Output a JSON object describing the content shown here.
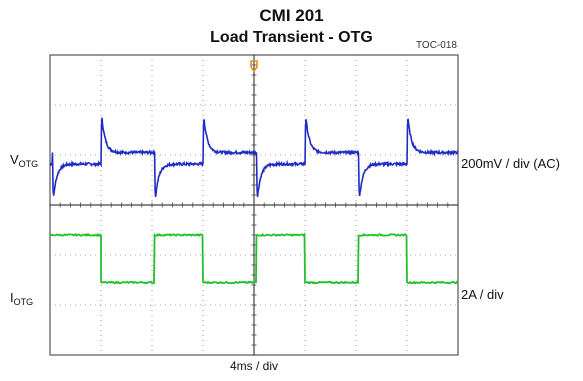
{
  "header": {
    "title": "CMI 201",
    "subtitle": "Load Transient - OTG",
    "figure_id": "TOC-018"
  },
  "channels": {
    "voltage": {
      "label_main": "V",
      "label_sub": "OTG",
      "scale": "200mV / div (AC)"
    },
    "current": {
      "label_main": "I",
      "label_sub": "OTG",
      "scale": "2A / div"
    }
  },
  "timebase": "4ms / div",
  "chart_data": {
    "type": "line",
    "title": "Load Transient - OTG",
    "xlabel": "4ms / div",
    "grid": true,
    "x_divisions": 8,
    "y_divisions": 6,
    "colors": {
      "voltage": "#1f2bc4",
      "current": "#22c12a",
      "trigger": "#e08a00",
      "grid": "#888888",
      "frame": "#555555"
    },
    "x": [
      0,
      0.5,
      1.0,
      1.5,
      2.0,
      2.5,
      3.0,
      3.5,
      4.0,
      4.5,
      5.0,
      5.5,
      6.0,
      6.5,
      7.0,
      7.5,
      8.0
    ],
    "series": [
      {
        "name": "V_OTG",
        "unit": "div",
        "edges_div": [
          0.05,
          1.0,
          2.05,
          3.0,
          4.05,
          5.0,
          6.05,
          7.0
        ],
        "baseline_high": 1.05,
        "baseline_low": 0.82,
        "spike_peak": 1.95,
        "dip_trough": -0.05
      },
      {
        "name": "I_OTG",
        "unit": "div",
        "high_div": -0.6,
        "low_div": -1.55,
        "transitions_div": [
          1.0,
          2.05,
          3.0,
          4.05,
          5.0,
          6.05,
          7.0
        ]
      }
    ],
    "trigger_position_div": 4.0
  }
}
